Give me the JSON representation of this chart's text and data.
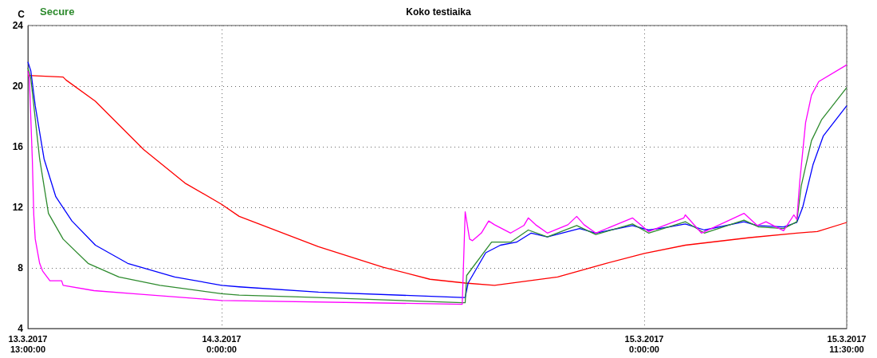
{
  "chart_data": {
    "type": "line",
    "title": "Koko testiaika",
    "ylabel": "C",
    "legend": "top left",
    "grid": true,
    "marker": "none",
    "xlim": [
      "2017-03-13T13:00",
      "2017-03-15T11:30"
    ],
    "xticks": [
      {
        "value": "2017-03-13T13:00",
        "label": "13.3.2017\n13:00:00"
      },
      {
        "value": "2017-03-14T00:00",
        "label": "14.3.2017\n0:00:00"
      },
      {
        "value": "2017-03-15T00:00",
        "label": "15.3.2017\n0:00:00"
      },
      {
        "value": "2017-03-15T11:30",
        "label": "15.3.2017\n11:30:00"
      }
    ],
    "ylim": [
      4,
      24
    ],
    "yticks": [
      4,
      8,
      12,
      16,
      20,
      24
    ],
    "series": [
      {
        "color": "#ff0000",
        "x": [
          "2017-03-13T13:00",
          "2017-03-13T15:00",
          "2017-03-13T15:10",
          "2017-03-13T16:50",
          "2017-03-13T19:35",
          "2017-03-13T21:55",
          "2017-03-14T00:00",
          "2017-03-14T01:00",
          "2017-03-14T05:30",
          "2017-03-14T09:10",
          "2017-03-14T11:50",
          "2017-03-14T13:50",
          "2017-03-14T15:30",
          "2017-03-14T19:05",
          "2017-03-14T21:50",
          "2017-03-15T00:00",
          "2017-03-15T02:20",
          "2017-03-15T06:00",
          "2017-03-15T08:40",
          "2017-03-15T09:50",
          "2017-03-15T11:30"
        ],
        "values": [
          20.7,
          20.6,
          20.4,
          19.0,
          15.8,
          13.6,
          12.2,
          11.4,
          9.4,
          8.05,
          7.25,
          7.0,
          6.85,
          7.4,
          8.3,
          8.95,
          9.5,
          10.0,
          10.3,
          10.4,
          11.0
        ]
      },
      {
        "color": "#0000ff",
        "x": [
          "2017-03-13T13:00",
          "2017-03-13T13:10",
          "2017-03-13T13:25",
          "2017-03-13T13:55",
          "2017-03-13T14:35",
          "2017-03-13T15:30",
          "2017-03-13T16:50",
          "2017-03-13T18:40",
          "2017-03-13T21:20",
          "2017-03-14T00:00",
          "2017-03-14T01:00",
          "2017-03-14T05:30",
          "2017-03-14T13:40",
          "2017-03-14T13:50",
          "2017-03-14T14:00",
          "2017-03-14T15:00",
          "2017-03-14T15:50",
          "2017-03-14T16:45",
          "2017-03-14T17:35",
          "2017-03-14T18:30",
          "2017-03-14T20:20",
          "2017-03-14T21:15",
          "2017-03-14T23:20",
          "2017-03-15T00:15",
          "2017-03-15T01:25",
          "2017-03-15T02:20",
          "2017-03-15T03:25",
          "2017-03-15T05:40",
          "2017-03-15T06:25",
          "2017-03-15T07:55",
          "2017-03-15T08:40",
          "2017-03-15T08:50",
          "2017-03-15T09:00",
          "2017-03-15T09:35",
          "2017-03-15T10:10",
          "2017-03-15T11:30"
        ],
        "values": [
          21.6,
          21.0,
          18.7,
          15.2,
          12.7,
          11.1,
          9.5,
          8.3,
          7.4,
          6.85,
          6.75,
          6.4,
          6.05,
          6.05,
          7.0,
          9.0,
          9.5,
          9.7,
          10.3,
          10.05,
          10.6,
          10.3,
          10.8,
          10.5,
          10.7,
          10.9,
          10.5,
          11.05,
          10.8,
          10.7,
          11.0,
          11.5,
          12.0,
          14.8,
          16.7,
          18.7
        ]
      },
      {
        "name": "Secure",
        "color": "#2e8b2e",
        "x": [
          "2017-03-13T13:00",
          "2017-03-13T13:10",
          "2017-03-13T13:40",
          "2017-03-13T14:10",
          "2017-03-13T15:00",
          "2017-03-13T16:25",
          "2017-03-13T18:10",
          "2017-03-13T20:30",
          "2017-03-14T00:00",
          "2017-03-14T01:00",
          "2017-03-14T05:30",
          "2017-03-14T13:40",
          "2017-03-14T13:50",
          "2017-03-14T13:55",
          "2017-03-14T15:20",
          "2017-03-14T16:25",
          "2017-03-14T17:25",
          "2017-03-14T18:30",
          "2017-03-14T20:10",
          "2017-03-14T21:15",
          "2017-03-14T23:20",
          "2017-03-15T00:15",
          "2017-03-15T02:20",
          "2017-03-15T03:25",
          "2017-03-15T05:40",
          "2017-03-15T06:30",
          "2017-03-15T07:55",
          "2017-03-15T08:40",
          "2017-03-15T08:55",
          "2017-03-15T09:30",
          "2017-03-15T10:05",
          "2017-03-15T11:30"
        ],
        "values": [
          21.2,
          20.5,
          15.2,
          11.6,
          9.9,
          8.3,
          7.4,
          6.85,
          6.3,
          6.2,
          6.05,
          5.7,
          5.7,
          7.5,
          9.7,
          9.7,
          10.5,
          10.05,
          10.8,
          10.2,
          10.9,
          10.3,
          11.05,
          10.3,
          11.15,
          10.7,
          10.6,
          11.05,
          13.4,
          16.4,
          17.8,
          19.9
        ]
      },
      {
        "color": "#ff00ff",
        "x": [
          "2017-03-13T13:00",
          "2017-03-13T13:05",
          "2017-03-13T13:15",
          "2017-03-13T13:20",
          "2017-03-13T13:25",
          "2017-03-13T13:40",
          "2017-03-13T13:50",
          "2017-03-13T14:15",
          "2017-03-13T14:55",
          "2017-03-13T15:00",
          "2017-03-13T16:45",
          "2017-03-13T19:00",
          "2017-03-14T00:00",
          "2017-03-14T13:40",
          "2017-03-14T13:50",
          "2017-03-14T14:05",
          "2017-03-14T14:15",
          "2017-03-14T14:45",
          "2017-03-14T15:10",
          "2017-03-14T15:30",
          "2017-03-14T16:25",
          "2017-03-14T17:10",
          "2017-03-14T17:25",
          "2017-03-14T17:50",
          "2017-03-14T18:30",
          "2017-03-14T19:40",
          "2017-03-14T20:10",
          "2017-03-14T20:35",
          "2017-03-14T21:15",
          "2017-03-14T23:20",
          "2017-03-15T00:15",
          "2017-03-15T02:15",
          "2017-03-15T02:20",
          "2017-03-15T03:15",
          "2017-03-15T05:40",
          "2017-03-15T06:25",
          "2017-03-15T06:55",
          "2017-03-15T07:55",
          "2017-03-15T08:30",
          "2017-03-15T08:40",
          "2017-03-15T08:50",
          "2017-03-15T09:10",
          "2017-03-15T09:30",
          "2017-03-15T09:55",
          "2017-03-15T11:30"
        ],
        "values": [
          21.0,
          20.5,
          15.2,
          11.5,
          9.9,
          8.3,
          7.8,
          7.15,
          7.15,
          6.85,
          6.5,
          6.3,
          5.85,
          5.6,
          11.7,
          9.9,
          9.8,
          10.3,
          11.1,
          10.85,
          10.3,
          10.8,
          11.3,
          10.85,
          10.3,
          10.85,
          11.4,
          10.85,
          10.3,
          11.3,
          10.4,
          11.3,
          11.5,
          10.3,
          11.6,
          10.8,
          11.05,
          10.45,
          11.5,
          11.2,
          13.7,
          17.6,
          19.4,
          20.3,
          21.4
        ]
      }
    ]
  }
}
